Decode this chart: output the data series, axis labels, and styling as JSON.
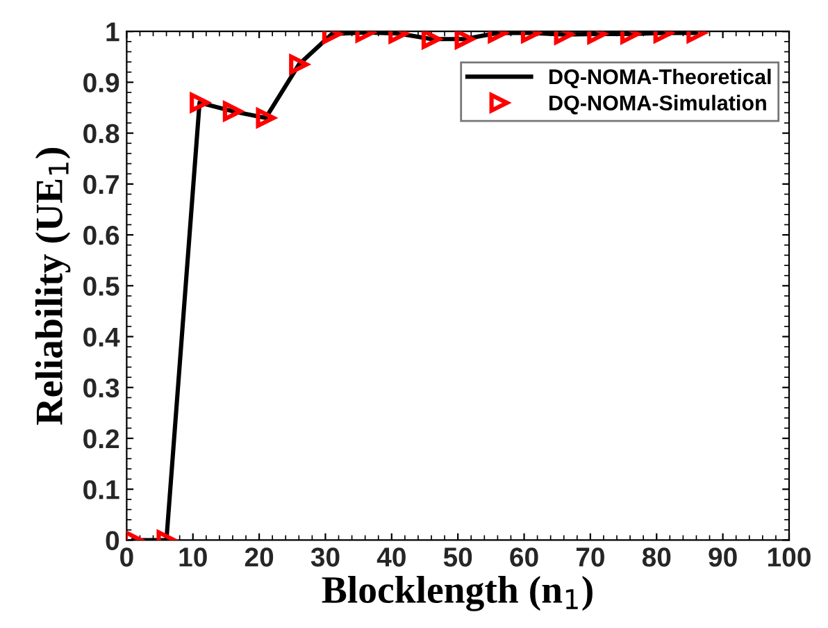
{
  "chart_data": {
    "type": "line",
    "xlabel": "Blocklength (n$_{1}$)",
    "ylabel": "Reliability (UE$_{1}$)",
    "x": [
      1,
      6,
      11,
      16,
      21,
      26,
      31,
      36,
      41,
      46,
      51,
      56,
      61,
      66,
      71,
      76,
      81,
      86
    ],
    "series": [
      {
        "name": "DQ-NOMA-Theoretical",
        "color": "#000000",
        "marker": "none",
        "line_style": "solid",
        "values": [
          0,
          0,
          0.86,
          0.843,
          0.83,
          0.935,
          0.995,
          0.998,
          0.996,
          0.985,
          0.985,
          0.997,
          0.997,
          0.994,
          0.995,
          0.995,
          0.997,
          0.997
        ]
      },
      {
        "name": "DQ-NOMA-Simulation",
        "type": "scatter",
        "color": "#ff0000",
        "marker": "triangle",
        "values": [
          0,
          0,
          0.86,
          0.843,
          0.83,
          0.935,
          0.995,
          0.998,
          0.996,
          0.985,
          0.985,
          0.997,
          0.997,
          0.994,
          0.995,
          0.995,
          0.997,
          0.997
        ]
      }
    ],
    "xlim": [
      0,
      100
    ],
    "xticks": [
      0,
      10,
      20,
      30,
      40,
      50,
      60,
      70,
      80,
      90,
      100
    ],
    "ylim": [
      0,
      1
    ],
    "yticks": [
      0,
      0.1,
      0.2,
      0.3,
      0.4,
      0.5,
      0.6,
      0.7,
      0.8,
      0.9,
      1
    ],
    "grid": false,
    "legend": "top right"
  }
}
